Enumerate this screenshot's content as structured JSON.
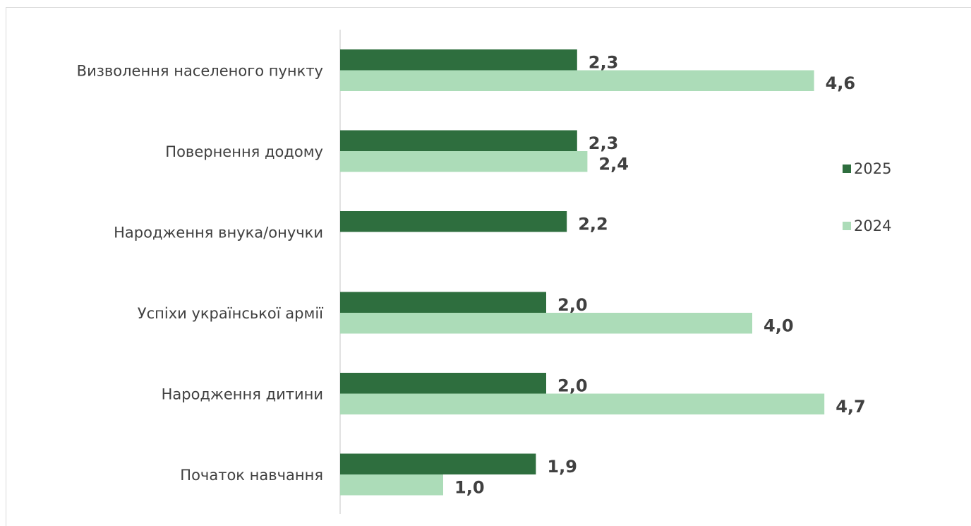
{
  "chart_data": {
    "type": "bar",
    "orientation": "horizontal",
    "categories": [
      "Визволення населеного пункту",
      "Повернення додому",
      "Народження внука/онучки",
      "Успіхи української армії",
      "Народження дитини",
      "Початок навчання"
    ],
    "series": [
      {
        "name": "2025",
        "color": "#2e6e3e",
        "values": [
          2.3,
          2.3,
          2.2,
          2.0,
          2.0,
          1.9
        ],
        "labels": [
          "2,3",
          "2,3",
          "2,2",
          "2,0",
          "2,0",
          "1,9"
        ]
      },
      {
        "name": "2024",
        "color": "#acdcb8",
        "values": [
          4.6,
          2.4,
          null,
          4.0,
          4.7,
          1.0
        ],
        "labels": [
          "4,6",
          "2,4",
          "",
          "4,0",
          "4,7",
          "1,0"
        ]
      }
    ],
    "xlim": [
      0,
      5
    ],
    "grid": false,
    "legend_position": "right",
    "title": "",
    "xlabel": "",
    "ylabel": ""
  }
}
